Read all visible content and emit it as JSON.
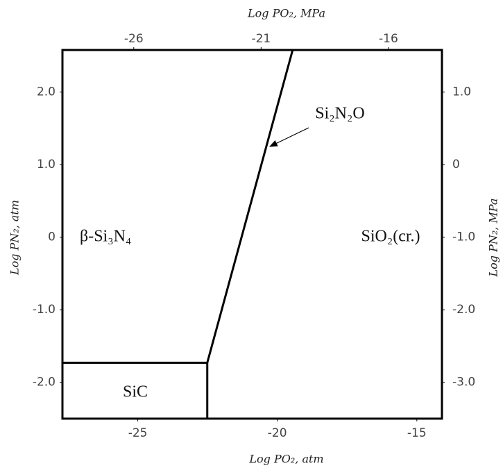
{
  "chart_data": {
    "type": "phase-diagram",
    "x_label": "Log PO₂, atm",
    "x2_label": "Log PO₂, MPa",
    "y_label": "Log PN₂, atm",
    "y2_label": "Log PN₂, MPa",
    "xlim": [
      -27.7,
      -14.1
    ],
    "xticks": [
      -25,
      -20,
      -15
    ],
    "x2lim": [
      -28.8,
      -13.9
    ],
    "x2ticks": [
      -26,
      -21,
      -16
    ],
    "ylim": [
      -2.5,
      2.58
    ],
    "yticks": [
      {
        "value": -2,
        "label": "-2.0"
      },
      {
        "value": -1,
        "label": "-1.0"
      },
      0,
      {
        "value": 1,
        "label": "1.0"
      },
      {
        "value": 2,
        "label": "2.0"
      }
    ],
    "y2lim": [
      -3.5,
      1.58
    ],
    "y2ticks": [
      {
        "value": -3,
        "label": "-3.0"
      },
      {
        "value": -2,
        "label": "-2.0"
      },
      {
        "value": -1,
        "label": "-1.0"
      },
      0,
      {
        "value": 1,
        "label": "1.0"
      }
    ],
    "color": "#000000",
    "lines": [
      {
        "x": [
          -27.7,
          -22.51
        ],
        "y": [
          -1.73,
          -1.73
        ]
      },
      {
        "x": [
          -22.51,
          -22.51
        ],
        "y": [
          -1.73,
          -2.5
        ]
      },
      {
        "x": [
          -22.51,
          -19.45
        ],
        "y": [
          -1.73,
          2.58
        ]
      }
    ],
    "annotations": [
      "β-Si₃N₄",
      "SiO₂(cr.)",
      "SiC",
      "Si₂N₂O"
    ]
  }
}
